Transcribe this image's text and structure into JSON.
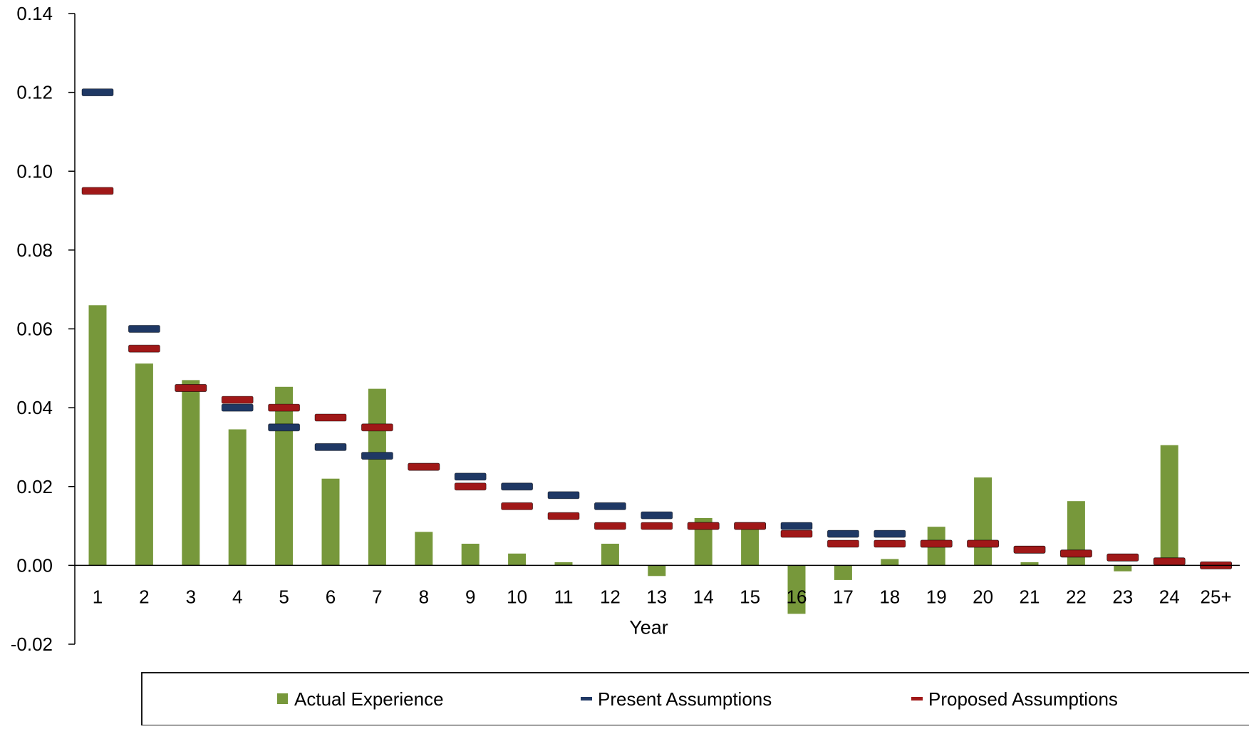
{
  "chart_data": {
    "type": "bar",
    "xlabel": "Year",
    "ylabel": "",
    "ylim": [
      -0.02,
      0.14
    ],
    "yticks": [
      "-0.02",
      "0.00",
      "0.02",
      "0.04",
      "0.06",
      "0.08",
      "0.10",
      "0.12",
      "0.14"
    ],
    "categories": [
      "1",
      "2",
      "3",
      "4",
      "5",
      "6",
      "7",
      "8",
      "9",
      "10",
      "11",
      "12",
      "13",
      "14",
      "15",
      "16",
      "17",
      "18",
      "19",
      "20",
      "21",
      "22",
      "23",
      "24",
      "25+"
    ],
    "series": [
      {
        "name": "Actual Experience",
        "mark": "bar",
        "color": "#77983b",
        "values": [
          0.066,
          0.0512,
          0.047,
          0.0345,
          0.0453,
          0.022,
          0.0448,
          0.0085,
          0.0055,
          0.003,
          0.0008,
          0.0055,
          -0.0027,
          0.012,
          0.0105,
          -0.0123,
          -0.0037,
          0.0016,
          0.0098,
          0.0223,
          0.0008,
          0.0163,
          -0.0015,
          0.0305,
          null
        ]
      },
      {
        "name": "Present Assumptions",
        "mark": "dash",
        "color": "#1f3864",
        "values": [
          0.12,
          0.06,
          0.045,
          0.04,
          0.035,
          0.03,
          0.0278,
          0.025,
          0.0225,
          0.02,
          0.0178,
          0.015,
          0.0127,
          0.01,
          0.01,
          0.01,
          0.008,
          0.008,
          0.0055,
          0.0055,
          0.004,
          0.003,
          0.002,
          0.001,
          0.0
        ]
      },
      {
        "name": "Proposed Assumptions",
        "mark": "dash",
        "color": "#a01818",
        "values": [
          0.095,
          0.055,
          0.045,
          0.042,
          0.04,
          0.0375,
          0.035,
          0.025,
          0.02,
          0.015,
          0.0125,
          0.01,
          0.01,
          0.01,
          0.01,
          0.008,
          0.0055,
          0.0055,
          0.0055,
          0.0055,
          0.004,
          0.003,
          0.002,
          0.001,
          0.0
        ]
      }
    ],
    "grid": false,
    "legend": "bottom"
  }
}
